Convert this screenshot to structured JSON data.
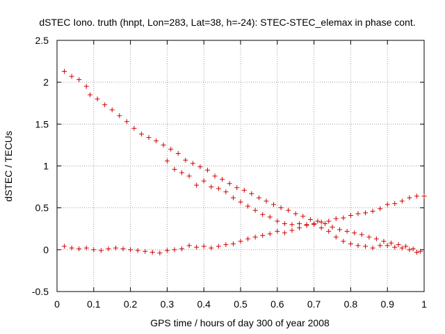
{
  "chart_data": {
    "type": "scatter",
    "title": "dSTEC Iono. truth (hnpt, Lon=283, Lat=38, h=-24): STEC-STEC_elemax in phase cont.",
    "xlabel": "GPS time / hours of day 300 of year 2008",
    "ylabel": "dSTEC  / TECUs",
    "xlim": [
      0,
      1
    ],
    "ylim": [
      -0.5,
      2.5
    ],
    "xticks": [
      0,
      0.1,
      0.2,
      0.3,
      0.4,
      0.5,
      0.6,
      0.7,
      0.8,
      0.9,
      1
    ],
    "xtick_labels": [
      "0",
      "0.1",
      "0.2",
      "0.3",
      "0.4",
      "0.5",
      "0.6",
      "0.7",
      "0.8",
      "0.9",
      "1"
    ],
    "yticks": [
      -0.5,
      0,
      0.5,
      1,
      1.5,
      2,
      2.5
    ],
    "ytick_labels": [
      "-0.5",
      "0",
      "0.5",
      "1",
      "1.5",
      "2",
      "2.5"
    ],
    "grid": true,
    "marker": "plus",
    "color": "#d00000",
    "series": [
      {
        "name": "",
        "points": [
          [
            0.02,
            2.13
          ],
          [
            0.04,
            2.07
          ],
          [
            0.06,
            2.03
          ],
          [
            0.08,
            1.95
          ],
          [
            0.09,
            1.85
          ],
          [
            0.11,
            1.8
          ],
          [
            0.13,
            1.73
          ],
          [
            0.15,
            1.67
          ],
          [
            0.17,
            1.6
          ],
          [
            0.19,
            1.53
          ],
          [
            0.21,
            1.45
          ],
          [
            0.23,
            1.38
          ],
          [
            0.25,
            1.34
          ],
          [
            0.27,
            1.3
          ],
          [
            0.29,
            1.25
          ],
          [
            0.31,
            1.2
          ],
          [
            0.33,
            1.15
          ],
          [
            0.35,
            1.07
          ],
          [
            0.37,
            1.03
          ],
          [
            0.39,
            0.99
          ],
          [
            0.41,
            0.95
          ],
          [
            0.43,
            0.88
          ],
          [
            0.45,
            0.84
          ],
          [
            0.47,
            0.79
          ],
          [
            0.49,
            0.74
          ],
          [
            0.51,
            0.71
          ],
          [
            0.53,
            0.67
          ],
          [
            0.55,
            0.62
          ],
          [
            0.57,
            0.58
          ],
          [
            0.59,
            0.54
          ],
          [
            0.61,
            0.5
          ],
          [
            0.63,
            0.47
          ],
          [
            0.65,
            0.43
          ],
          [
            0.67,
            0.4
          ],
          [
            0.69,
            0.36
          ],
          [
            0.71,
            0.34
          ],
          [
            0.73,
            0.31
          ],
          [
            0.75,
            0.27
          ],
          [
            0.77,
            0.24
          ],
          [
            0.79,
            0.22
          ],
          [
            0.81,
            0.2
          ],
          [
            0.83,
            0.18
          ],
          [
            0.85,
            0.15
          ],
          [
            0.87,
            0.13
          ],
          [
            0.89,
            0.1
          ],
          [
            0.91,
            0.08
          ],
          [
            0.93,
            0.06
          ],
          [
            0.95,
            0.04
          ],
          [
            0.97,
            0.01
          ],
          [
            0.99,
            -0.02
          ]
        ]
      },
      {
        "name": "",
        "points": [
          [
            0.3,
            1.06
          ],
          [
            0.32,
            0.96
          ],
          [
            0.34,
            0.92
          ],
          [
            0.36,
            0.88
          ],
          [
            0.38,
            0.77
          ],
          [
            0.4,
            0.82
          ],
          [
            0.42,
            0.75
          ],
          [
            0.44,
            0.73
          ],
          [
            0.46,
            0.69
          ],
          [
            0.48,
            0.62
          ],
          [
            0.5,
            0.57
          ],
          [
            0.52,
            0.52
          ],
          [
            0.54,
            0.47
          ],
          [
            0.56,
            0.42
          ],
          [
            0.58,
            0.39
          ],
          [
            0.6,
            0.34
          ],
          [
            0.62,
            0.31
          ],
          [
            0.64,
            0.3
          ],
          [
            0.66,
            0.31
          ],
          [
            0.68,
            0.3
          ],
          [
            0.7,
            0.3
          ],
          [
            0.72,
            0.26
          ],
          [
            0.74,
            0.22
          ],
          [
            0.76,
            0.15
          ],
          [
            0.78,
            0.1
          ],
          [
            0.8,
            0.07
          ],
          [
            0.82,
            0.05
          ],
          [
            0.84,
            0.04
          ],
          [
            0.86,
            0.02
          ],
          [
            0.88,
            0.05
          ],
          [
            0.9,
            0.05
          ],
          [
            0.92,
            0.03
          ],
          [
            0.94,
            0.02
          ],
          [
            0.96,
            0.0
          ],
          [
            0.98,
            -0.03
          ]
        ]
      },
      {
        "name": "",
        "points": [
          [
            0.02,
            0.04
          ],
          [
            0.04,
            0.02
          ],
          [
            0.06,
            0.01
          ],
          [
            0.08,
            0.02
          ],
          [
            0.1,
            0.0
          ],
          [
            0.12,
            -0.01
          ],
          [
            0.14,
            0.01
          ],
          [
            0.16,
            0.02
          ],
          [
            0.18,
            0.01
          ],
          [
            0.2,
            0.0
          ],
          [
            0.22,
            -0.01
          ],
          [
            0.24,
            -0.02
          ],
          [
            0.26,
            -0.03
          ],
          [
            0.28,
            -0.04
          ],
          [
            0.3,
            -0.01
          ],
          [
            0.32,
            0.0
          ],
          [
            0.34,
            0.01
          ],
          [
            0.36,
            0.05
          ],
          [
            0.38,
            0.03
          ],
          [
            0.4,
            0.04
          ],
          [
            0.42,
            0.02
          ],
          [
            0.44,
            0.04
          ],
          [
            0.46,
            0.06
          ],
          [
            0.48,
            0.07
          ],
          [
            0.5,
            0.1
          ],
          [
            0.52,
            0.13
          ],
          [
            0.54,
            0.15
          ],
          [
            0.56,
            0.17
          ],
          [
            0.58,
            0.19
          ],
          [
            0.6,
            0.22
          ],
          [
            0.62,
            0.2
          ],
          [
            0.64,
            0.23
          ],
          [
            0.66,
            0.26
          ],
          [
            0.68,
            0.29
          ],
          [
            0.7,
            0.31
          ],
          [
            0.72,
            0.33
          ],
          [
            0.74,
            0.34
          ],
          [
            0.76,
            0.37
          ],
          [
            0.78,
            0.38
          ],
          [
            0.8,
            0.41
          ],
          [
            0.82,
            0.43
          ],
          [
            0.84,
            0.44
          ],
          [
            0.86,
            0.46
          ],
          [
            0.88,
            0.49
          ],
          [
            0.9,
            0.54
          ],
          [
            0.92,
            0.55
          ],
          [
            0.94,
            0.58
          ],
          [
            0.96,
            0.62
          ],
          [
            0.98,
            0.64
          ],
          [
            1.0,
            0.64
          ]
        ]
      }
    ]
  }
}
